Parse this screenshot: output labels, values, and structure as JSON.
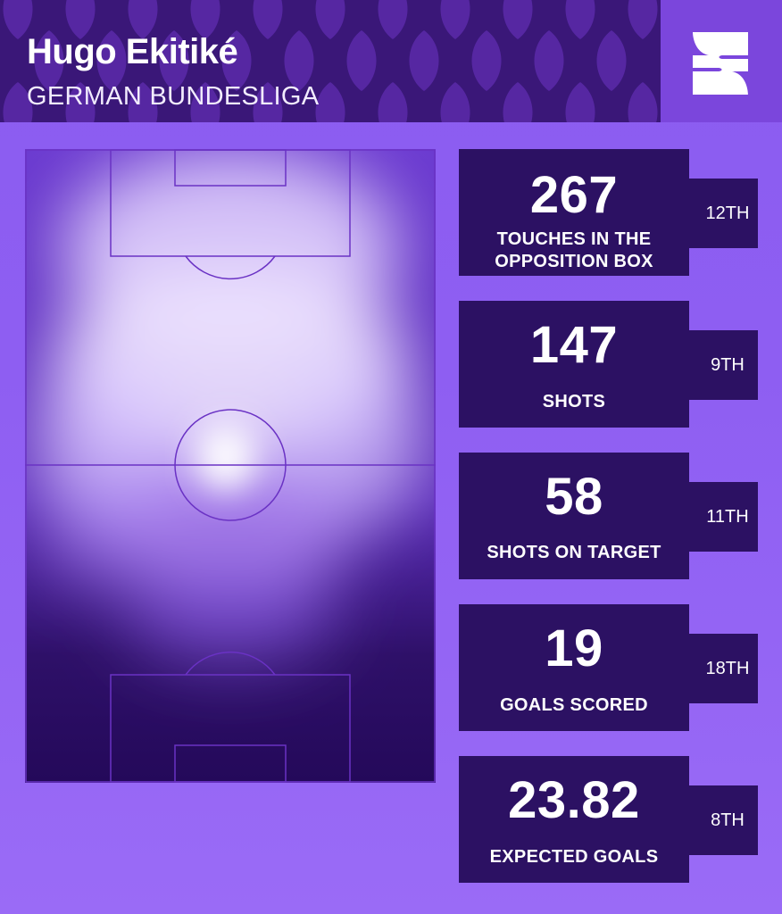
{
  "header": {
    "player_name": "Hugo Ekitiké",
    "league": "GERMAN BUNDESLIGA",
    "logo_icon": "s-logo-icon"
  },
  "colors": {
    "header_bg": "#3a1778",
    "card_bg": "#2c1163",
    "page_bg": "#8b5cf0",
    "heat_glow": "#efe6ff"
  },
  "stats": [
    {
      "value": "267",
      "label_lines": [
        "TOUCHES IN THE",
        "OPPOSITION BOX"
      ],
      "rank": "12TH"
    },
    {
      "value": "147",
      "label_lines": [
        "SHOTS"
      ],
      "rank": "9TH"
    },
    {
      "value": "58",
      "label_lines": [
        "SHOTS ON TARGET"
      ],
      "rank": "11TH"
    },
    {
      "value": "19",
      "label_lines": [
        "GOALS SCORED"
      ],
      "rank": "18TH"
    },
    {
      "value": "23.82",
      "label_lines": [
        "EXPECTED GOALS"
      ],
      "rank": "8TH"
    }
  ]
}
